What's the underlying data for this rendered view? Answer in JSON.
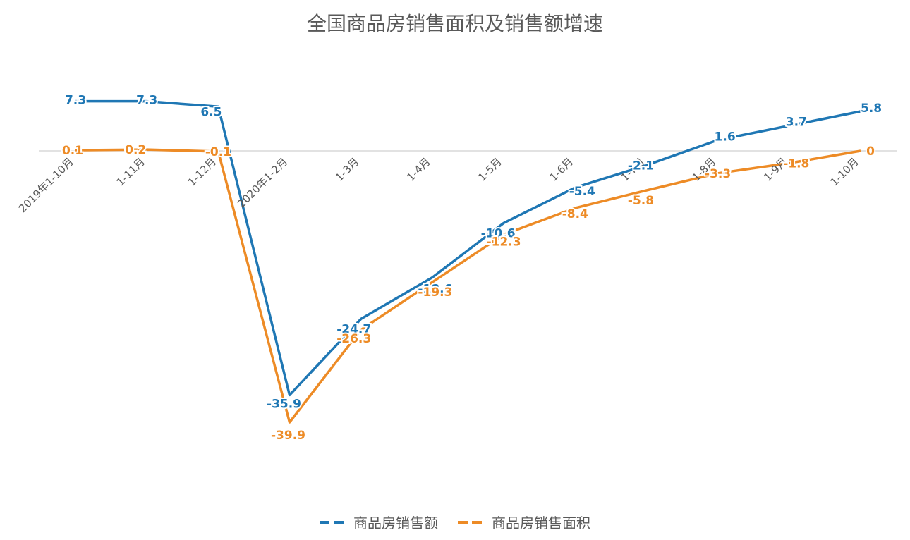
{
  "chart_data": {
    "type": "line",
    "title": "全国商品房销售面积及销售额增速",
    "xlabel": "",
    "ylabel": "",
    "categories": [
      "2019年1-10月",
      "1-11月",
      "1-12月",
      "2020年1-2月",
      "1-3月",
      "1-4月",
      "1-5月",
      "1-6月",
      "1-7月",
      "1-8月",
      "1-9月",
      "1-10月"
    ],
    "series": [
      {
        "name": "商品房销售额",
        "color": "#1f77b4",
        "values": [
          7.3,
          7.3,
          6.5,
          -35.9,
          -24.7,
          -18.6,
          -10.6,
          -5.4,
          -2.1,
          1.6,
          3.7,
          5.8
        ],
        "labels": [
          "7.3",
          "7.3",
          "6.5",
          "-35.9",
          "-24.7",
          "-18.6",
          "-10.6",
          "-5.4",
          "-2.1",
          "1.6",
          "3.7",
          "5.8"
        ]
      },
      {
        "name": "商品房销售面积",
        "color": "#ed8b26",
        "values": [
          0.1,
          0.2,
          -0.1,
          -39.9,
          -26.3,
          -19.3,
          -12.3,
          -8.4,
          -5.8,
          -3.3,
          -1.8,
          0
        ],
        "labels": [
          "0.1",
          "0.2",
          "-0.1",
          "-39.9",
          "-26.3",
          "-19.3",
          "-12.3",
          "-8.4",
          "-5.8",
          "-3.3",
          "-1.8",
          "0"
        ]
      }
    ],
    "ylim": [
      -51,
      20
    ],
    "grid": false,
    "legend": "bottom"
  }
}
